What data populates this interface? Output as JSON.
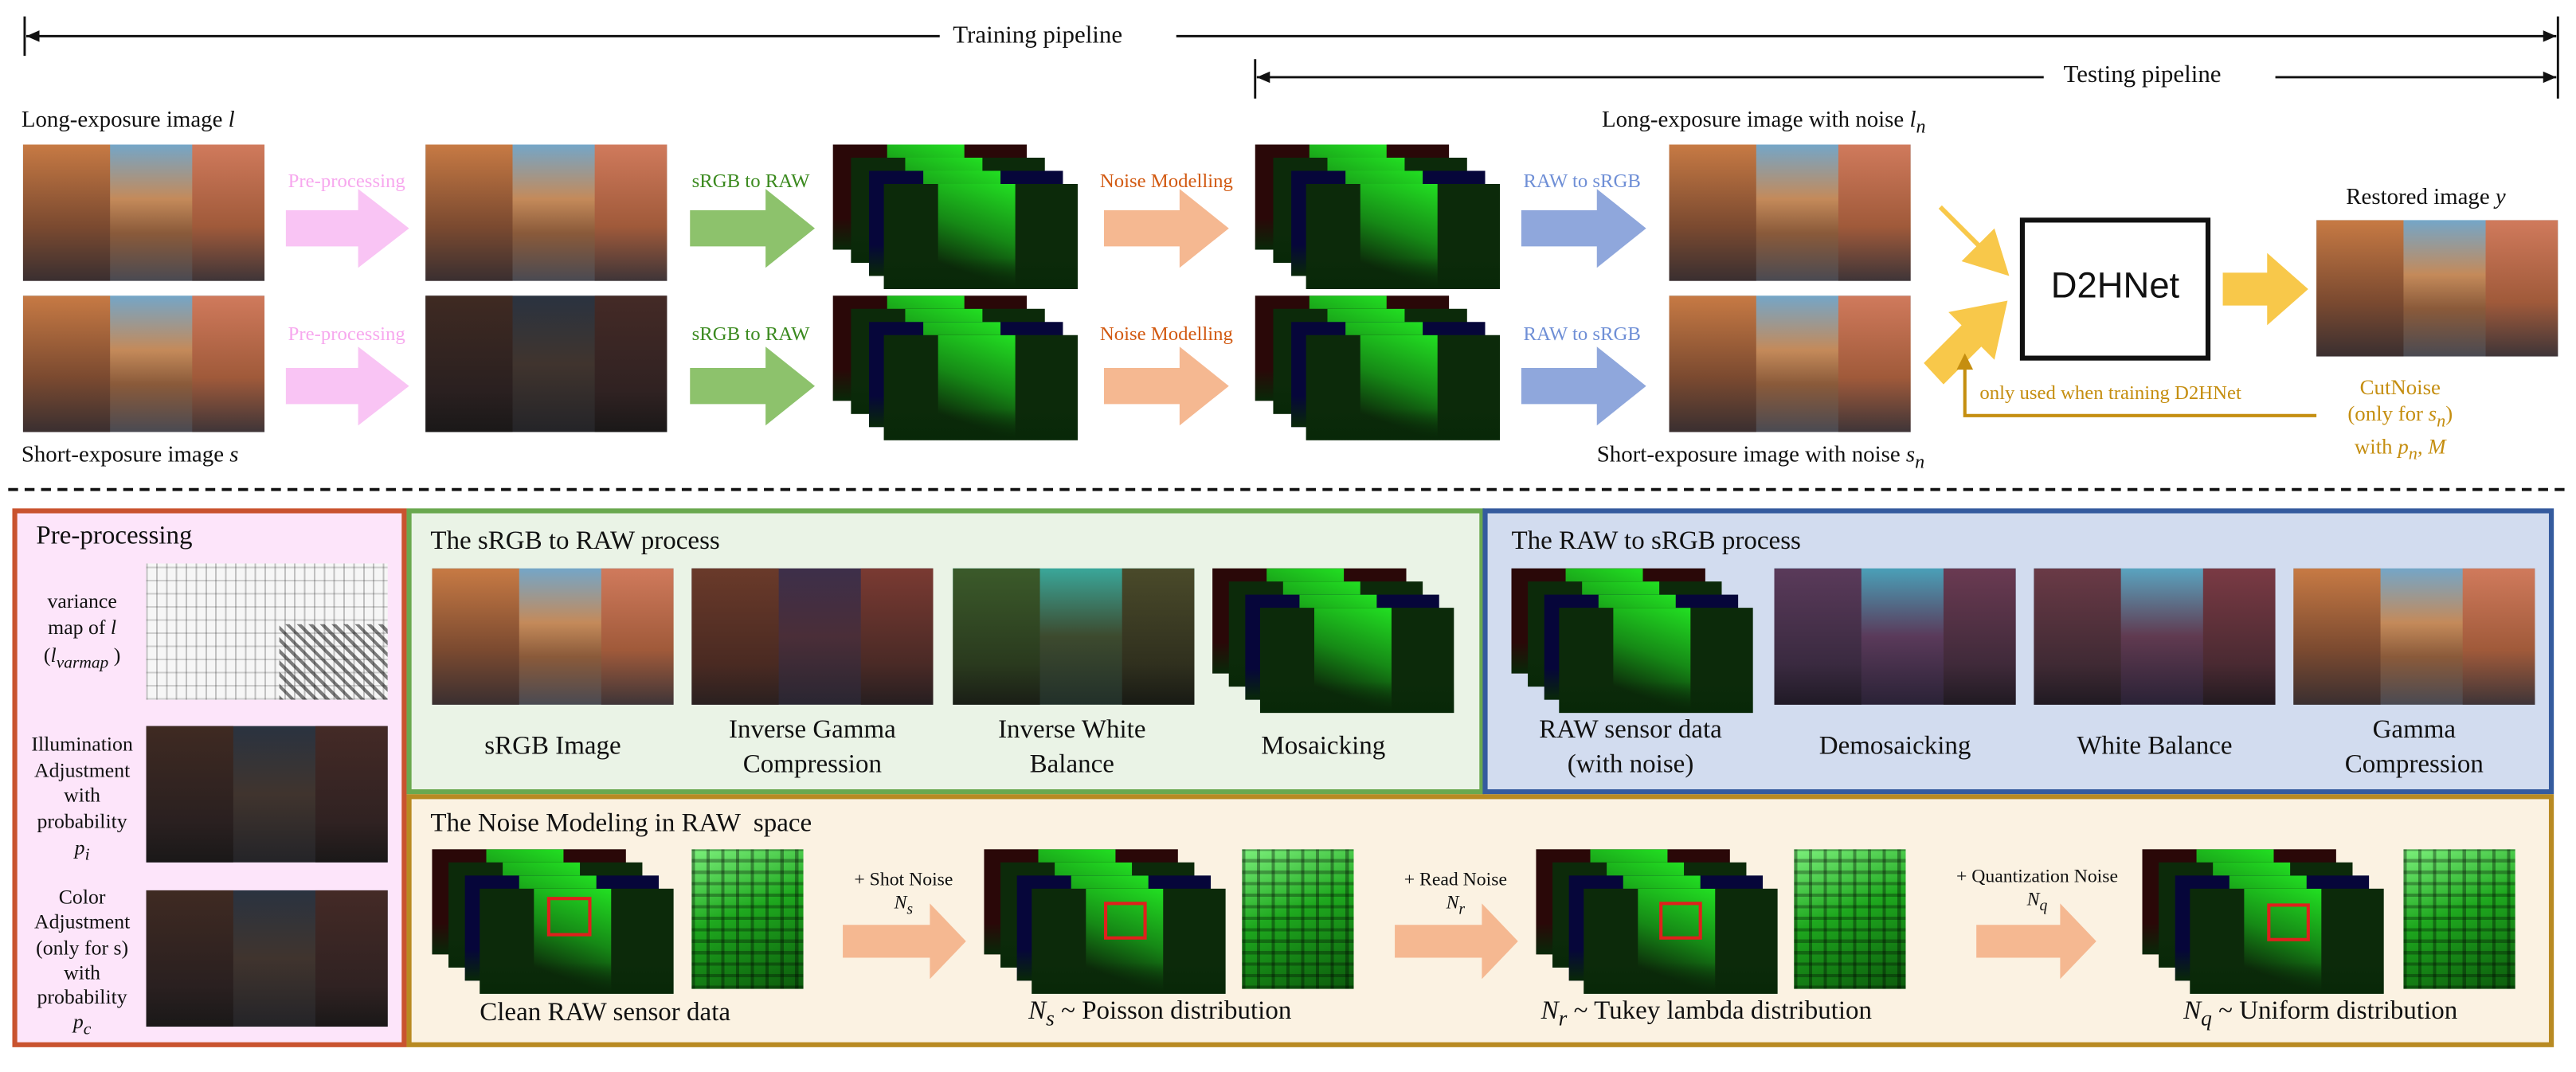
{
  "header": {
    "training_pipeline": "Training pipeline",
    "testing_pipeline": "Testing pipeline"
  },
  "top": {
    "long_exposure_label": "Long-exposure image",
    "long_exposure_var": "l",
    "short_exposure_label": "Short-exposure image",
    "short_exposure_var": "s",
    "long_noise_label": "Long-exposure image with noise",
    "long_noise_var": "l",
    "long_noise_sub": "n",
    "short_noise_label": "Short-exposure image with noise",
    "short_noise_var": "s",
    "short_noise_sub": "n",
    "restored_label": "Restored image",
    "restored_var": "y",
    "preprocessing_label": "Pre-processing",
    "srgb_to_raw_label": "sRGB to RAW",
    "noise_modelling_label": "Noise Modelling",
    "raw_to_srgb_label": "RAW to sRGB",
    "network_label": "D2HNet",
    "feedback_label": "only used when training D2HNet",
    "cutnoise_line1": "CutNoise",
    "cutnoise_line2": "(only for",
    "cutnoise_var": "s",
    "cutnoise_sub": "n",
    "cutnoise_close": ")",
    "cutnoise_line3": "with",
    "cutnoise_p": "p",
    "cutnoise_p_sub": "n",
    "cutnoise_m": ", M"
  },
  "preprocessing_panel": {
    "title": "Pre-processing",
    "variance_line1": "variance",
    "variance_line2": "map of",
    "variance_var": "l",
    "variance_open": "(",
    "variance_sym": "l",
    "variance_sub": "varmap",
    "variance_close": ")",
    "illumination_lines": [
      "Illumination",
      "Adjustment",
      "with",
      "probability"
    ],
    "illumination_var": "p",
    "illumination_sub": "i",
    "color_lines": [
      "Color",
      "Adjustment",
      "(only for s)",
      "with",
      "probability"
    ],
    "color_var": "p",
    "color_sub": "c"
  },
  "srgb_to_raw_panel": {
    "title": "The sRGB to RAW process",
    "steps": [
      {
        "line1": "sRGB Image",
        "line2": ""
      },
      {
        "line1": "Inverse Gamma",
        "line2": "Compression"
      },
      {
        "line1": "Inverse White",
        "line2": "Balance"
      },
      {
        "line1": "Mosaicking",
        "line2": ""
      }
    ]
  },
  "raw_to_srgb_panel": {
    "title": "The RAW to sRGB process",
    "steps": [
      {
        "line1": "RAW sensor data",
        "line2": "(with noise)"
      },
      {
        "line1": "Demosaicking",
        "line2": ""
      },
      {
        "line1": "White Balance",
        "line2": ""
      },
      {
        "line1": "Gamma",
        "line2": "Compression"
      }
    ]
  },
  "noise_panel": {
    "title": "The Noise Modeling in RAW  space",
    "clean_label": "Clean RAW sensor data",
    "shot_noise_label": "+ Shot Noise",
    "shot_sym": "N",
    "shot_sub": "s",
    "read_noise_label": "+ Read Noise",
    "read_sym": "N",
    "read_sub": "r",
    "quant_noise_label": "+ Quantization Noise",
    "quant_sym": "N",
    "quant_sub": "q",
    "poisson_text": "~ Poisson distribution",
    "tukey_text": "~ Tukey lambda distribution",
    "uniform_text": "~ Uniform distribution"
  },
  "colors": {
    "preprocessing_arrow": "#f9c4f4",
    "srgb_to_raw_arrow": "#8dc26c",
    "noise_arrow": "#f5b891",
    "raw_to_srgb_arrow": "#8fa7dc",
    "d2hnet_arrow": "#f8c84a",
    "preprocessing_border": "#c9532f",
    "srgb_panel_border": "#6aa84f",
    "raw_panel_border": "#355b9e",
    "noise_panel_border": "#b88a22",
    "cutnoise_text": "#c58e10"
  }
}
